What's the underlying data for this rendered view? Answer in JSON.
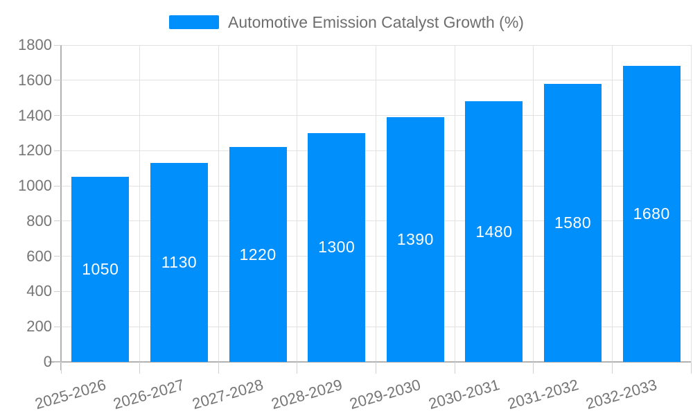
{
  "chart_data": {
    "type": "bar",
    "title": "Automotive Emission Catalyst Growth (%)",
    "legend_label": "Automotive Emission Catalyst Growth (%)",
    "legend_position": "top",
    "categories": [
      "2025-2026",
      "2026-2027",
      "2027-2028",
      "2028-2029",
      "2029-2030",
      "2030-2031",
      "2031-2032",
      "2032-2033"
    ],
    "values": [
      1050,
      1130,
      1220,
      1300,
      1390,
      1480,
      1580,
      1680
    ],
    "xlabel": "",
    "ylabel": "",
    "ylim": [
      0,
      1800
    ],
    "ytick_step": 200,
    "ytick_labels": [
      "0",
      "200",
      "400",
      "600",
      "800",
      "1000",
      "1200",
      "1400",
      "1600",
      "1800"
    ],
    "grid": "on",
    "colors": {
      "bar": "#008FFB",
      "bar_value_label": "#ffffff",
      "axis_text": "#757575",
      "legend_text": "#6e6e6e",
      "gridline": "#e2e2e2",
      "axis_line": "#b2b2b2",
      "tick_mark": "#d0d0d0",
      "background": "#ffffff"
    }
  }
}
